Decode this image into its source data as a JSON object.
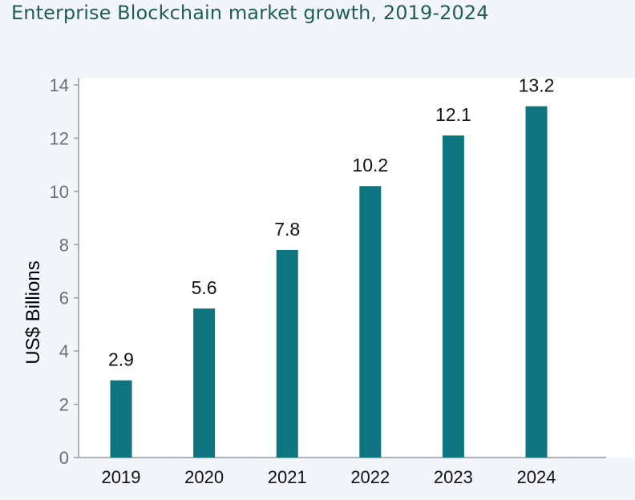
{
  "chart_data": {
    "type": "bar",
    "title": "Enterprise Blockchain market growth, 2019-2024",
    "xlabel": "",
    "ylabel": "US$ Billions",
    "categories": [
      "2019",
      "2020",
      "2021",
      "2022",
      "2023",
      "2024"
    ],
    "values": [
      2.9,
      5.6,
      7.8,
      10.2,
      12.1,
      13.2
    ],
    "value_labels": [
      "2.9",
      "5.6",
      "7.8",
      "10.2",
      "12.1",
      "13.2"
    ],
    "ylim": [
      0,
      14
    ],
    "yticks": [
      0,
      2,
      4,
      6,
      8,
      10,
      12,
      14
    ],
    "grid": false,
    "legend": "none",
    "bar_color": "#0e7480"
  }
}
